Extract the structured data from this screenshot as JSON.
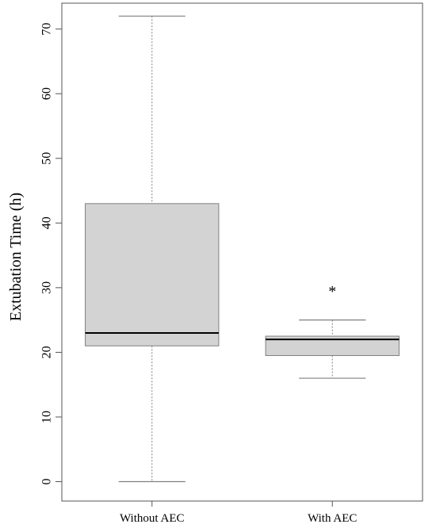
{
  "chart_data": {
    "type": "box",
    "ylabel": "Extubation Time (h)",
    "ylim": [
      -3,
      74
    ],
    "yticks": [
      0,
      10,
      20,
      30,
      40,
      50,
      60,
      70
    ],
    "grid": false,
    "categories": [
      "Without AEC",
      "With AEC"
    ],
    "boxes": [
      {
        "category": "Without AEC",
        "min": 0,
        "q1": 21,
        "median": 23,
        "q3": 43,
        "max": 72,
        "outliers": []
      },
      {
        "category": "With AEC",
        "min": 16,
        "q1": 19.5,
        "median": 22,
        "q3": 22.5,
        "max": 25,
        "outliers": [
          29.5
        ]
      }
    ],
    "outlier_marker": "*",
    "colors": {
      "box_fill": "#d3d3d3",
      "box_stroke": "#808080",
      "median": "#000000",
      "axis": "#555555"
    }
  }
}
